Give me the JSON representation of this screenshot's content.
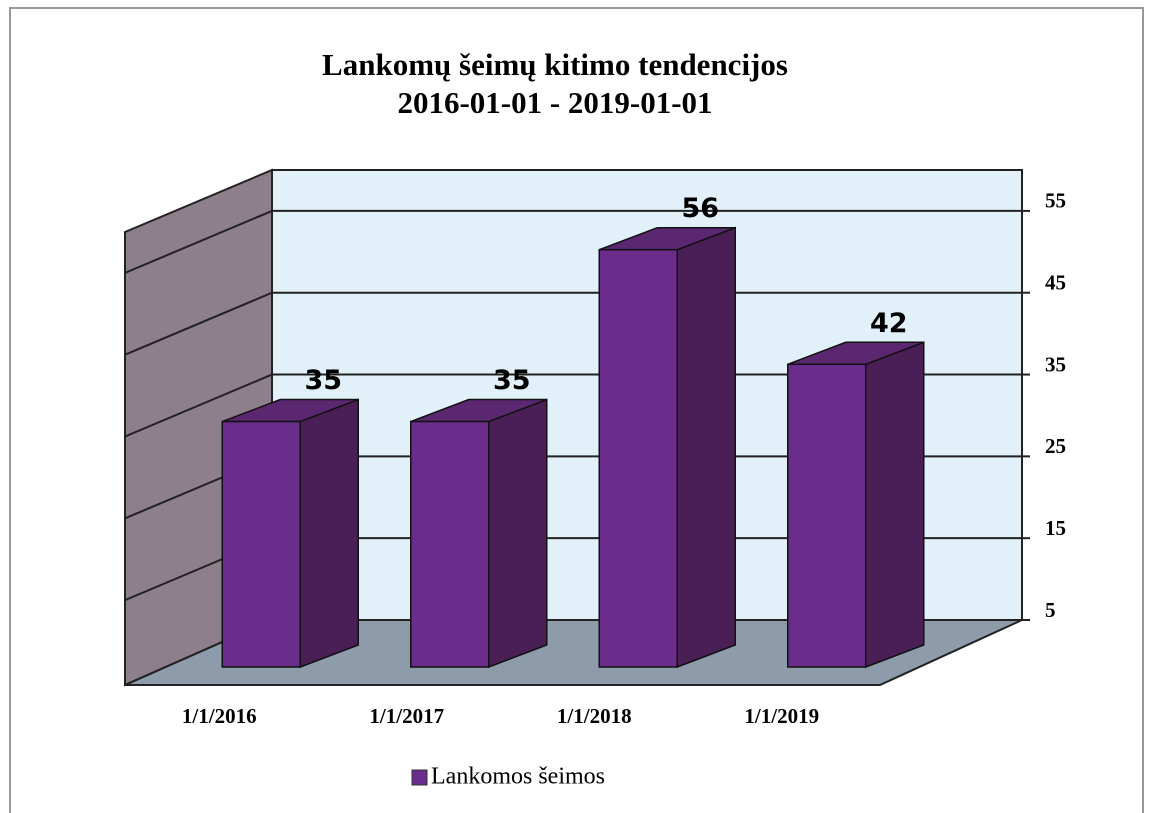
{
  "chart_data": {
    "type": "bar3d",
    "title": "Lankomų šeimų kitimo tendencijos",
    "subtitle": "2016-01-01 - 2019-01-01",
    "categories": [
      "1/1/2016",
      "1/1/2017",
      "1/1/2018",
      "1/1/2019"
    ],
    "series": [
      {
        "name": "Lankomos šeimos",
        "color": "#6b2d8c",
        "values": [
          35,
          35,
          56,
          42
        ]
      }
    ],
    "ylim": [
      5,
      60
    ],
    "yticks": [
      5,
      15,
      25,
      35,
      45,
      55
    ],
    "grid": true,
    "legend": "bottom"
  }
}
